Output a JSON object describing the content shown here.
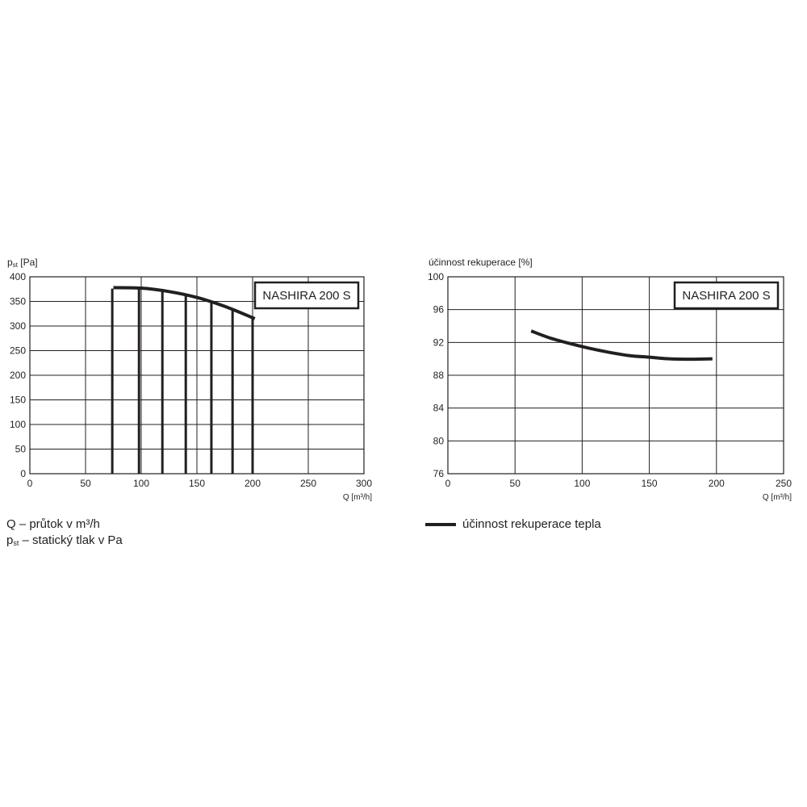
{
  "chart_data": [
    {
      "type": "line",
      "ylabel_main": "p",
      "ylabel_sub": "st",
      "ylabel_unit": " [Pa]",
      "xlabel": "Q [m³/h]",
      "xlim": [
        0,
        300
      ],
      "ylim": [
        0,
        400
      ],
      "xticks": [
        0,
        50,
        100,
        150,
        200,
        250,
        300
      ],
      "yticks": [
        0,
        50,
        100,
        150,
        200,
        250,
        300,
        350,
        400
      ],
      "grid": true,
      "model_label": "NASHIRA 200 S",
      "model_label_position": "top-right",
      "series": [
        {
          "x": [
            75,
            100,
            125,
            150,
            175,
            202
          ],
          "y": [
            378,
            377,
            370,
            358,
            340,
            315
          ]
        }
      ],
      "vertical_lines": [
        {
          "x": 74,
          "y": 376
        },
        {
          "x": 98,
          "y": 377
        },
        {
          "x": 119,
          "y": 372
        },
        {
          "x": 140,
          "y": 364
        },
        {
          "x": 163,
          "y": 350
        },
        {
          "x": 182,
          "y": 332
        },
        {
          "x": 200,
          "y": 317
        }
      ]
    },
    {
      "type": "line",
      "ylabel": "účinnost rekuperace [%]",
      "xlabel": "Q [m³/h]",
      "xlim": [
        0,
        250
      ],
      "ylim": [
        76,
        100
      ],
      "xticks": [
        0,
        50,
        100,
        150,
        200,
        250
      ],
      "yticks": [
        76,
        80,
        84,
        88,
        92,
        96,
        100
      ],
      "grid": true,
      "model_label": "NASHIRA 200 S",
      "model_label_position": "top-right",
      "series": [
        {
          "name": "účinnost rekuperace tepla",
          "x": [
            62,
            75,
            90,
            105,
            120,
            135,
            150,
            165,
            180,
            197
          ],
          "y": [
            93.4,
            92.6,
            91.9,
            91.3,
            90.8,
            90.4,
            90.2,
            90.0,
            89.95,
            90.0
          ]
        }
      ]
    }
  ],
  "notes": {
    "line1": "Q – průtok v m³/h",
    "line2_main": "p",
    "line2_sub": "st",
    "line2_rest": " – statický tlak v Pa"
  },
  "legend2": {
    "label": "účinnost rekuperace tepla"
  },
  "colors": {
    "ink": "#231f20",
    "grid": "#231f20"
  }
}
